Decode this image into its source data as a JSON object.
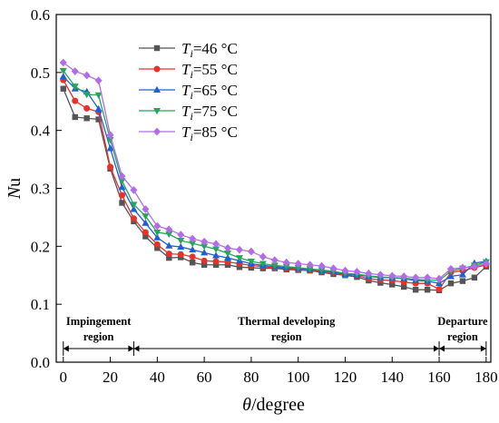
{
  "chart_data": {
    "type": "line",
    "xlabel_symbol": "θ",
    "xlabel_unit": "/degree",
    "ylabel": "Nu",
    "xlim": [
      -3,
      182
    ],
    "ylim": [
      0.0,
      0.6
    ],
    "xticks": [
      "0",
      "20",
      "40",
      "60",
      "80",
      "100",
      "120",
      "140",
      "160",
      "180"
    ],
    "yticks": [
      "0.0",
      "0.1",
      "0.2",
      "0.3",
      "0.4",
      "0.5",
      "0.6"
    ],
    "grid": false,
    "legend_position": "top-left",
    "x": [
      0,
      5,
      10,
      15,
      20,
      25,
      30,
      35,
      40,
      45,
      50,
      55,
      60,
      65,
      70,
      75,
      80,
      85,
      90,
      95,
      100,
      105,
      110,
      115,
      120,
      125,
      130,
      135,
      140,
      145,
      150,
      155,
      160,
      165,
      170,
      175,
      180
    ],
    "series": [
      {
        "name_symbol": "T",
        "name_sub": "i",
        "name_rest": "=46 °C",
        "color": "#555555",
        "marker": "square",
        "values": [
          0.472,
          0.423,
          0.421,
          0.419,
          0.334,
          0.275,
          0.243,
          0.217,
          0.197,
          0.18,
          0.181,
          0.172,
          0.168,
          0.168,
          0.168,
          0.164,
          0.163,
          0.162,
          0.162,
          0.16,
          0.159,
          0.158,
          0.155,
          0.152,
          0.15,
          0.147,
          0.141,
          0.137,
          0.134,
          0.13,
          0.125,
          0.125,
          0.124,
          0.136,
          0.14,
          0.146,
          0.165
        ]
      },
      {
        "name_symbol": "T",
        "name_sub": "i",
        "name_rest": "=55 °C",
        "color": "#e8312a",
        "marker": "circle",
        "values": [
          0.487,
          0.451,
          0.438,
          0.432,
          0.337,
          0.288,
          0.248,
          0.224,
          0.203,
          0.187,
          0.186,
          0.182,
          0.175,
          0.174,
          0.173,
          0.17,
          0.167,
          0.165,
          0.163,
          0.162,
          0.16,
          0.159,
          0.157,
          0.154,
          0.151,
          0.15,
          0.144,
          0.142,
          0.141,
          0.138,
          0.136,
          0.136,
          0.126,
          0.155,
          0.158,
          0.163,
          0.168
        ]
      },
      {
        "name_symbol": "T",
        "name_sub": "i",
        "name_rest": "=65 °C",
        "color": "#1f5fd6",
        "marker": "triangle-up",
        "values": [
          0.493,
          0.472,
          0.467,
          0.437,
          0.369,
          0.302,
          0.264,
          0.24,
          0.215,
          0.201,
          0.199,
          0.194,
          0.189,
          0.184,
          0.18,
          0.175,
          0.17,
          0.167,
          0.165,
          0.163,
          0.162,
          0.16,
          0.158,
          0.156,
          0.152,
          0.151,
          0.148,
          0.146,
          0.146,
          0.144,
          0.141,
          0.14,
          0.136,
          0.148,
          0.151,
          0.171,
          0.174
        ]
      },
      {
        "name_symbol": "T",
        "name_sub": "i",
        "name_rest": "=75 °C",
        "color": "#27a55a",
        "marker": "triangle-down",
        "values": [
          0.503,
          0.476,
          0.462,
          0.461,
          0.384,
          0.313,
          0.272,
          0.252,
          0.224,
          0.221,
          0.21,
          0.205,
          0.2,
          0.195,
          0.188,
          0.18,
          0.174,
          0.17,
          0.167,
          0.165,
          0.163,
          0.161,
          0.159,
          0.157,
          0.153,
          0.152,
          0.149,
          0.147,
          0.146,
          0.145,
          0.143,
          0.142,
          0.141,
          0.157,
          0.162,
          0.167,
          0.173
        ]
      },
      {
        "name_symbol": "T",
        "name_sub": "i",
        "name_rest": "=85 °C",
        "color": "#b36ce8",
        "marker": "diamond",
        "values": [
          0.517,
          0.502,
          0.495,
          0.486,
          0.392,
          0.321,
          0.297,
          0.264,
          0.235,
          0.229,
          0.22,
          0.213,
          0.208,
          0.204,
          0.197,
          0.194,
          0.191,
          0.182,
          0.176,
          0.172,
          0.17,
          0.168,
          0.166,
          0.162,
          0.158,
          0.156,
          0.153,
          0.151,
          0.149,
          0.148,
          0.146,
          0.146,
          0.144,
          0.161,
          0.163,
          0.165,
          0.17
        ]
      }
    ],
    "regions": [
      {
        "label_line1": "Impingement",
        "label_line2": "region",
        "x_start": 0,
        "x_end": 30
      },
      {
        "label_line1": "Thermal developing",
        "label_line2": "region",
        "x_start": 30,
        "x_end": 160
      },
      {
        "label_line1": "Departure",
        "label_line2": "region",
        "x_start": 160,
        "x_end": 180
      }
    ]
  }
}
